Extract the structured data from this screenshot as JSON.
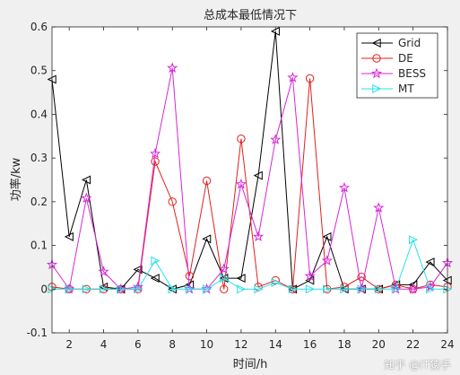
{
  "chart_data": {
    "type": "line",
    "title": "总成本最低情况下",
    "xlabel": "时间/h",
    "ylabel": "功率/kw",
    "xlim": [
      1,
      24
    ],
    "ylim": [
      -0.1,
      0.6
    ],
    "xticks": [
      2,
      4,
      6,
      8,
      10,
      12,
      14,
      16,
      18,
      20,
      22,
      24
    ],
    "yticks": [
      -0.1,
      0,
      0.1,
      0.2,
      0.3,
      0.4,
      0.5,
      0.6
    ],
    "grid": false,
    "legend_position": "top-right",
    "x": [
      1,
      2,
      3,
      4,
      5,
      6,
      7,
      8,
      9,
      10,
      11,
      12,
      13,
      14,
      15,
      16,
      17,
      18,
      19,
      20,
      21,
      22,
      23,
      24
    ],
    "series": [
      {
        "name": "Grid",
        "color": "#000000",
        "marker": "triangle-left",
        "values": [
          0.48,
          0.12,
          0.25,
          0.005,
          0.0,
          0.045,
          0.025,
          0.0,
          0.01,
          0.115,
          0.025,
          0.025,
          0.26,
          0.59,
          0.0,
          0.02,
          0.12,
          0.0,
          0.0,
          0.0,
          0.01,
          0.01,
          0.062,
          0.02
        ]
      },
      {
        "name": "DE",
        "color": "#e0201b",
        "marker": "circle",
        "values": [
          0.005,
          0.0,
          0.0,
          0.0,
          0.0,
          0.0,
          0.292,
          0.2,
          0.03,
          0.248,
          0.0,
          0.344,
          0.005,
          0.02,
          0.0,
          0.482,
          0.0,
          0.005,
          0.028,
          0.0,
          0.01,
          0.0,
          0.01,
          0.005
        ]
      },
      {
        "name": "BESS",
        "color": "#d826d8",
        "marker": "star",
        "values": [
          0.056,
          0.0,
          0.208,
          0.04,
          0.0,
          0.005,
          0.31,
          0.506,
          0.0,
          0.0,
          0.046,
          0.24,
          0.12,
          0.342,
          0.484,
          0.03,
          0.065,
          0.232,
          0.0,
          0.186,
          0.0,
          0.0,
          0.005,
          0.06
        ]
      },
      {
        "name": "MT",
        "color": "#26e0e8",
        "marker": "triangle-right",
        "values": [
          0.0,
          0.0,
          0.0,
          0.0,
          0.0,
          0.0,
          0.065,
          0.0,
          0.0,
          0.0,
          0.025,
          0.0,
          0.0,
          0.015,
          0.0,
          0.0,
          0.0,
          0.0,
          0.0,
          0.0,
          0.0,
          0.113,
          0.0,
          0.0
        ]
      }
    ]
  },
  "watermark": "知乎 @IT猿手"
}
